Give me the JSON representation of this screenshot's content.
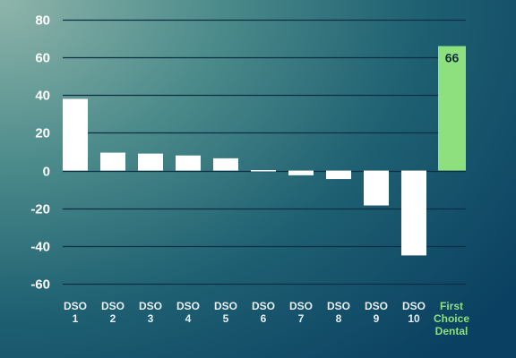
{
  "chart_data": {
    "type": "bar",
    "title": "",
    "xlabel": "",
    "ylabel": "",
    "ylim": [
      -60,
      80
    ],
    "yticks": [
      80,
      60,
      40,
      20,
      0,
      -20,
      -40,
      -60
    ],
    "ytick_labels": [
      "80",
      "60",
      "40",
      "20",
      "0",
      "-20",
      "-40",
      "-60"
    ],
    "grid": true,
    "categories": [
      [
        "DSO",
        "1"
      ],
      [
        "DSO",
        "2"
      ],
      [
        "DSO",
        "3"
      ],
      [
        "DSO",
        "4"
      ],
      [
        "DSO",
        "5"
      ],
      [
        "DSO",
        "6"
      ],
      [
        "DSO",
        "7"
      ],
      [
        "DSO",
        "8"
      ],
      [
        "DSO",
        "9"
      ],
      [
        "DSO",
        "10"
      ],
      [
        "First",
        "Choice",
        "Dental"
      ]
    ],
    "values": [
      38,
      9.5,
      9,
      8,
      6.5,
      0.5,
      -2.5,
      -4.5,
      -18.5,
      -45,
      66
    ],
    "highlight_index": 10,
    "data_labels": [
      {
        "index": 10,
        "text": "66"
      }
    ],
    "colors": {
      "bar": "#ffffff",
      "highlight_bar": "#8ee07f",
      "highlight_text": "#8ee07f",
      "category_text": "#e6eef2",
      "grid": "#0c2f46",
      "tick_text": "#ffffff",
      "data_label": "#0f2e3a"
    }
  }
}
